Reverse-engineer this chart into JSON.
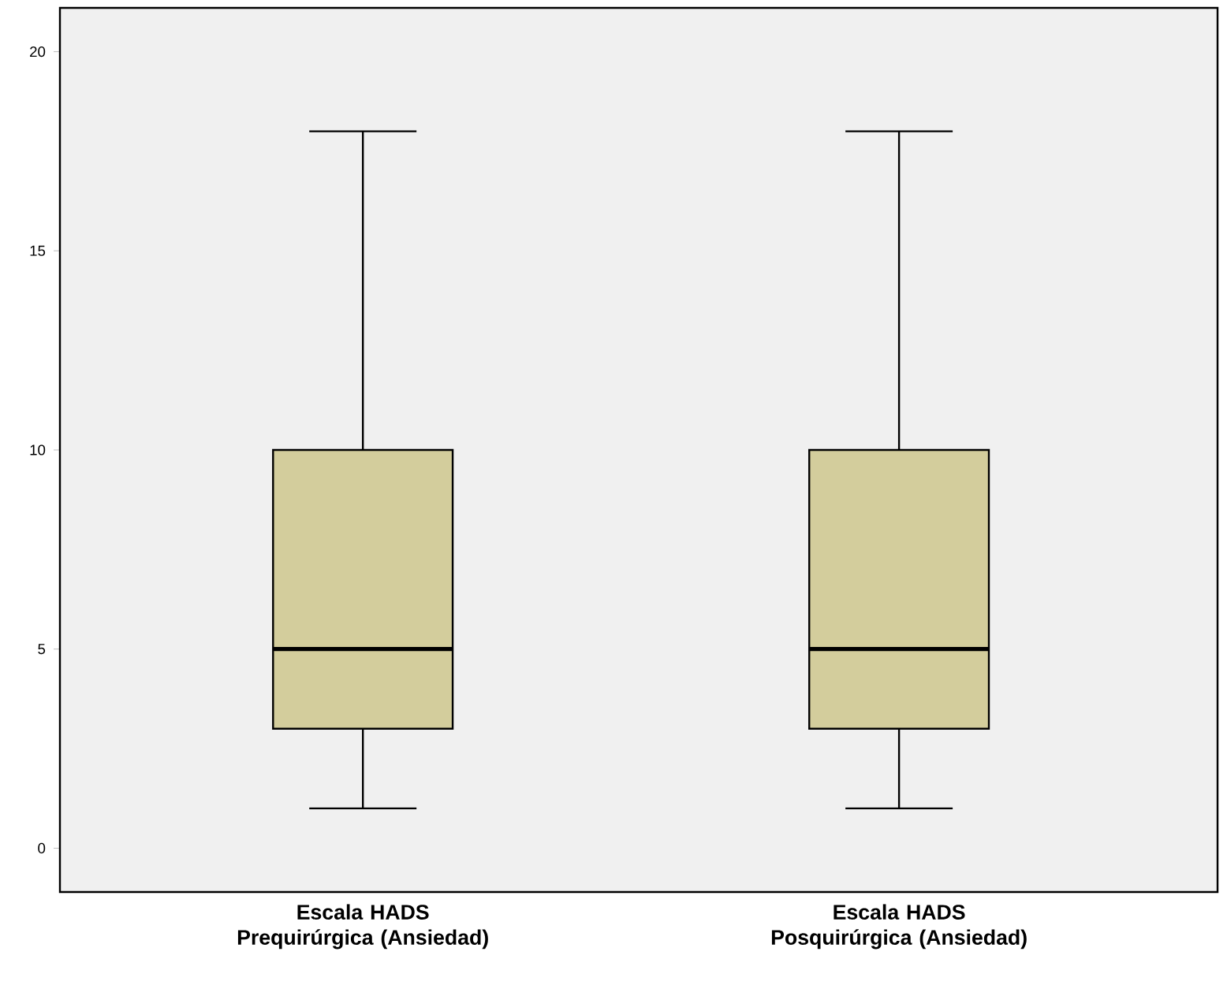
{
  "chart_data": {
    "type": "box",
    "categories": [
      "Escala HADS Prequirúrgica (Ansiedad)",
      "Escala HADS Posquirúrgica (Ansiedad)"
    ],
    "boxes": [
      {
        "low": 1,
        "q1": 3,
        "median": 5,
        "q3": 10,
        "high": 18
      },
      {
        "low": 1,
        "q1": 3,
        "median": 5,
        "q3": 10,
        "high": 18
      }
    ],
    "color": "#d3cd9c",
    "ylim": [
      -1.1,
      21.1
    ],
    "yticks": [
      0,
      5,
      10,
      15,
      20
    ]
  }
}
